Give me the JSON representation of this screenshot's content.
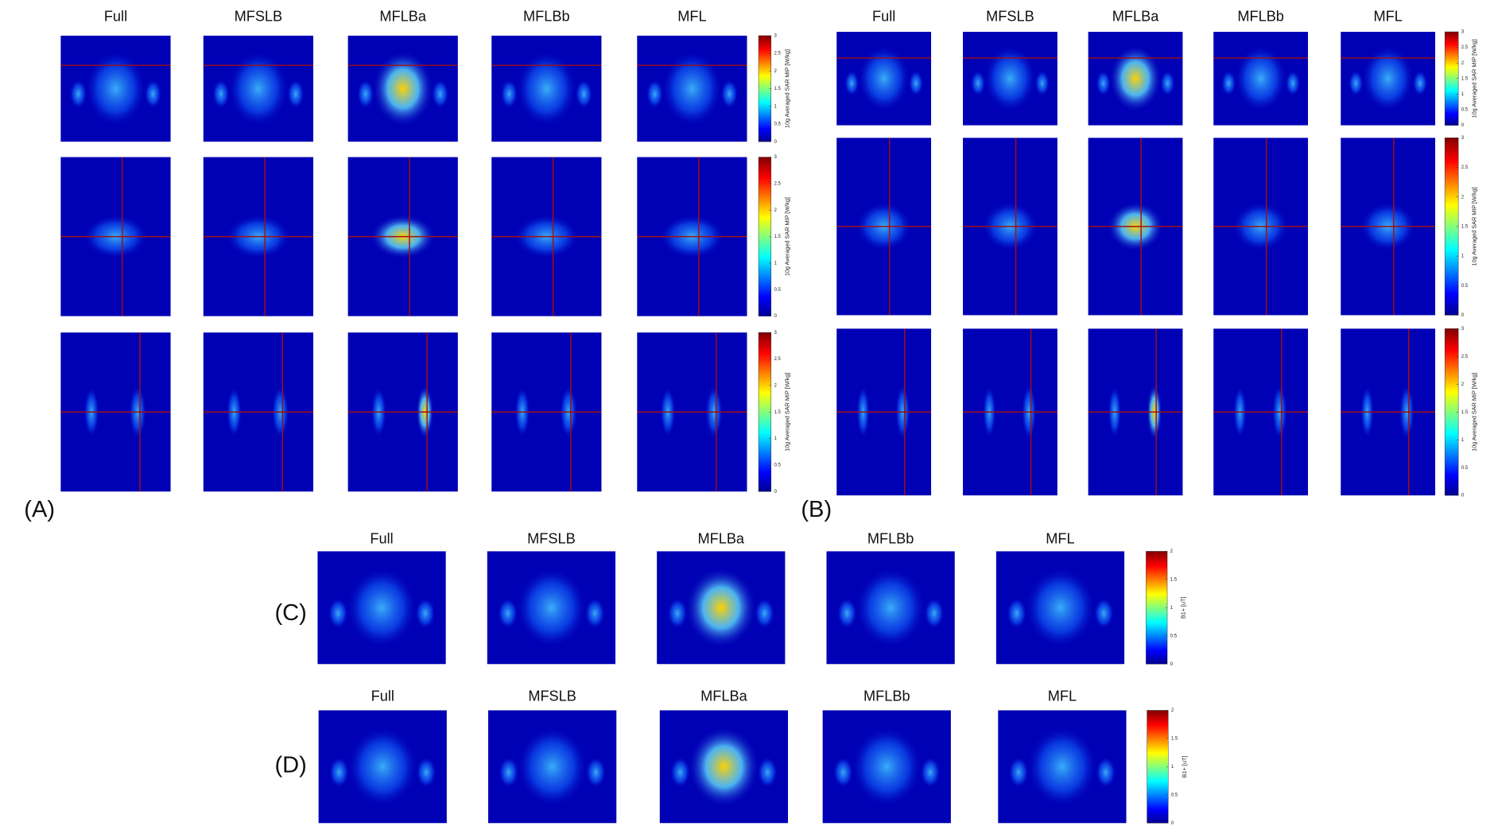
{
  "panels": [
    {
      "label": "(A)",
      "columns": [
        "Full",
        "MFSLB",
        "MFLBa",
        "MFLBb",
        "MFL"
      ],
      "colorbars": [
        {
          "label": "10g Averaged SAR MIP [W/kg]",
          "range": [
            0,
            3
          ],
          "ticks": [
            0,
            0.5,
            1,
            1.5,
            2,
            2.5,
            3
          ]
        },
        {
          "label": "10g Averaged SAR MIP [W/kg]",
          "range": [
            0,
            3
          ],
          "ticks": [
            0,
            0.5,
            1,
            1.5,
            2,
            2.5,
            3
          ]
        },
        {
          "label": "10g Averaged SAR MIP [W/kg]",
          "range": [
            0,
            3
          ],
          "ticks": [
            0,
            0.5,
            1,
            1.5,
            2,
            2.5,
            3
          ]
        }
      ]
    },
    {
      "label": "(B)",
      "columns": [
        "Full",
        "MFSLB",
        "MFLBa",
        "MFLBb",
        "MFL"
      ],
      "colorbars": [
        {
          "label": "10g Averaged SAR MIP [W/kg]",
          "range": [
            0,
            3
          ],
          "ticks": [
            0,
            0.5,
            1,
            1.5,
            2,
            2.5,
            3
          ]
        },
        {
          "label": "10g Averaged SAR MIP [W/kg]",
          "range": [
            0,
            3
          ],
          "ticks": [
            0,
            0.5,
            1,
            1.5,
            2,
            2.5,
            3
          ]
        },
        {
          "label": "10g Averaged SAR MIP [W/kg]",
          "range": [
            0,
            3
          ],
          "ticks": [
            0,
            0.5,
            1,
            1.5,
            2,
            2.5,
            3
          ]
        }
      ]
    },
    {
      "label": "(C)",
      "columns": [
        "Full",
        "MFSLB",
        "MFLBa",
        "MFLBb",
        "MFL"
      ],
      "colorbars": [
        {
          "label": "B1+ [uT]",
          "range": [
            0,
            2
          ],
          "ticks": [
            0,
            0.5,
            1,
            1.5,
            2
          ]
        }
      ]
    },
    {
      "label": "(D)",
      "columns": [
        "Full",
        "MFSLB",
        "MFLBa",
        "MFLBb",
        "MFL"
      ],
      "colorbars": [
        {
          "label": "B1+ [uT]",
          "range": [
            0,
            2
          ],
          "ticks": [
            0,
            0.5,
            1,
            1.5,
            2
          ]
        }
      ]
    }
  ]
}
